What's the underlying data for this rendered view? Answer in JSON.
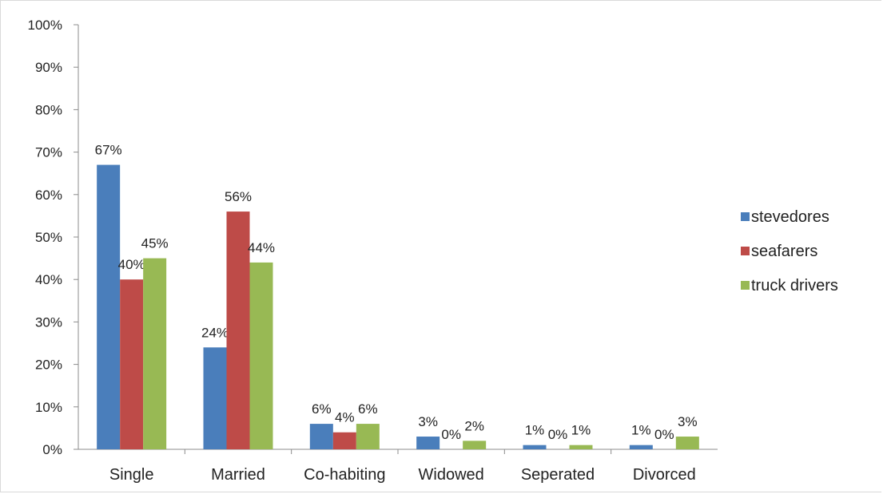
{
  "chart_data": {
    "type": "bar",
    "categories": [
      "Single",
      "Married",
      "Co-habiting",
      "Widowed",
      "Seperated",
      "Divorced"
    ],
    "series": [
      {
        "name": "stevedores",
        "color": "#4a7ebb",
        "values": [
          67,
          24,
          6,
          3,
          1,
          1
        ],
        "labels": [
          "67%",
          "24%",
          "6%",
          "3%",
          "1%",
          "1%"
        ]
      },
      {
        "name": "seafarers",
        "color": "#be4b48",
        "values": [
          40,
          56,
          4,
          0,
          0,
          0
        ],
        "labels": [
          "40%",
          "56%",
          "4%",
          "0%",
          "0%",
          "0%"
        ]
      },
      {
        "name": "truck drivers",
        "color": "#98b954",
        "values": [
          45,
          44,
          6,
          2,
          1,
          3
        ],
        "labels": [
          "45%",
          "44%",
          "6%",
          "2%",
          "1%",
          "3%"
        ]
      }
    ],
    "yticks": [
      "0%",
      "10%",
      "20%",
      "30%",
      "40%",
      "50%",
      "60%",
      "70%",
      "80%",
      "90%",
      "100%"
    ],
    "ylim": [
      0,
      100
    ],
    "unit": "%",
    "grid": false,
    "legend": "right"
  }
}
